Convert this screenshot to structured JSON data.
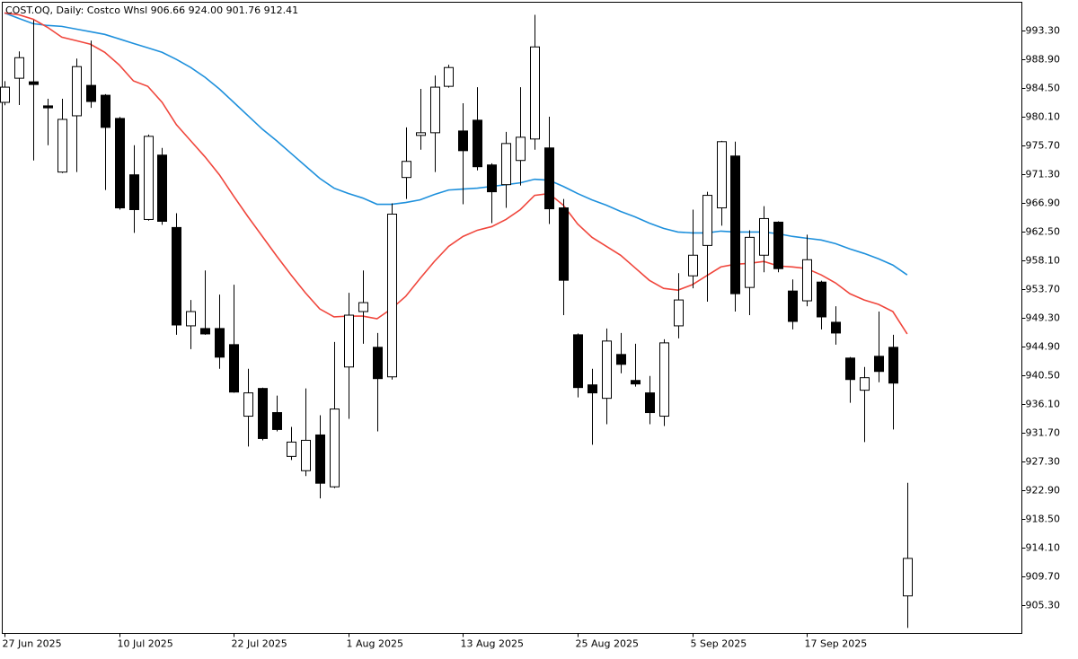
{
  "chart_data": {
    "type": "candlestick",
    "title": "COST.OQ, Daily:  Costco Whsl  906.66 924.00 901.76 912.41",
    "categories": [
      "27 Jun 2025",
      null,
      null,
      null,
      null,
      null,
      null,
      null,
      "10 Jul 2025",
      null,
      null,
      null,
      null,
      null,
      null,
      null,
      "22 Jul 2025",
      null,
      null,
      null,
      null,
      null,
      null,
      null,
      "1 Aug 2025",
      null,
      null,
      null,
      null,
      null,
      null,
      null,
      "13 Aug 2025",
      null,
      null,
      null,
      null,
      null,
      null,
      null,
      "25 Aug 2025",
      null,
      null,
      null,
      null,
      null,
      null,
      null,
      "5 Sep 2025",
      null,
      null,
      null,
      null,
      null,
      null,
      null,
      "17 Sep 2025",
      null,
      null,
      null,
      null,
      null,
      null,
      null
    ],
    "open": [
      982.34,
      986.04,
      985.49,
      981.8,
      971.65,
      980.28,
      984.94,
      983.43,
      979.87,
      971.23,
      964.38,
      974.25,
      963.15,
      948.07,
      947.66,
      947.66,
      945.19,
      934.22,
      938.47,
      934.77,
      928.05,
      925.86,
      931.34,
      923.39,
      941.76,
      950.26,
      944.78,
      940.25,
      970.82,
      977.27,
      977.68,
      984.8,
      977.95,
      979.6,
      972.74,
      969.72,
      973.43,
      976.72,
      975.35,
      966.16,
      946.7,
      939.02,
      936.96,
      943.68,
      939.7,
      937.79,
      934.22,
      948.07,
      955.74,
      960.4,
      966.16,
      974.11,
      953.96,
      958.9,
      963.97,
      953.41,
      951.91,
      954.78,
      948.62,
      943.13,
      938.2,
      943.4,
      944.78,
      906.66
    ],
    "high": [
      985.6,
      990.15,
      994.95,
      982.89,
      982.89,
      989.05,
      991.8,
      983.6,
      980.1,
      975.76,
      977.4,
      975.35,
      965.34,
      952.04,
      956.56,
      952.86,
      954.37,
      941.49,
      938.6,
      937.38,
      932.58,
      938.47,
      934.36,
      945.6,
      953.14,
      956.56,
      946.97,
      966.85,
      978.5,
      984.4,
      986.45,
      988.1,
      982.2,
      984.67,
      973.0,
      977.81,
      984.67,
      995.77,
      980.14,
      967.53,
      946.9,
      941.49,
      947.66,
      946.97,
      945.33,
      940.39,
      946.01,
      956.15,
      965.89,
      968.63,
      976.44,
      976.31,
      962.73,
      966.43,
      964.1,
      955.19,
      962.05,
      955.0,
      951.08,
      943.3,
      941.76,
      950.26,
      946.7,
      924.0
    ],
    "low": [
      981.9,
      981.93,
      973.43,
      975.76,
      971.5,
      971.65,
      981.5,
      968.9,
      965.89,
      962.32,
      964.2,
      963.56,
      946.7,
      944.5,
      946.7,
      941.49,
      937.8,
      929.56,
      930.5,
      931.89,
      927.5,
      925.04,
      921.61,
      923.2,
      933.81,
      945.33,
      931.89,
      939.84,
      967.53,
      975.07,
      971.65,
      984.6,
      966.71,
      971.92,
      963.83,
      966.16,
      969.59,
      975.07,
      963.69,
      949.71,
      937.1,
      929.84,
      932.99,
      940.8,
      938.75,
      932.99,
      932.71,
      946.15,
      953.82,
      951.77,
      963.42,
      950.26,
      949.71,
      956.29,
      956.29,
      947.52,
      951.08,
      947.52,
      945.19,
      936.28,
      930.25,
      939.43,
      932.17,
      901.76
    ],
    "close": [
      984.67,
      989.19,
      985.08,
      981.5,
      979.73,
      987.82,
      982.47,
      978.5,
      966.16,
      965.89,
      977.13,
      964.1,
      948.2,
      950.26,
      946.83,
      943.27,
      937.92,
      937.79,
      930.79,
      932.17,
      930.25,
      930.52,
      923.94,
      935.32,
      949.71,
      951.63,
      939.98,
      965.2,
      973.29,
      977.68,
      984.67,
      987.68,
      974.93,
      972.47,
      968.63,
      976.03,
      976.99,
      990.84,
      966.02,
      955.06,
      938.61,
      937.79,
      945.74,
      942.17,
      939.16,
      934.77,
      945.46,
      952.04,
      958.9,
      968.08,
      976.31,
      953.0,
      961.64,
      964.52,
      956.84,
      948.75,
      958.21,
      949.44,
      946.97,
      939.84,
      940.12,
      941.08,
      939.29,
      912.41
    ],
    "up_color": "#ffffff",
    "down_color": "#000000",
    "overlays": [
      {
        "color": "#1e90dc",
        "values": [
          996.05,
          995.22,
          994.4,
          994.13,
          993.99,
          993.58,
          993.17,
          992.76,
          992.07,
          991.38,
          990.7,
          990.01,
          988.92,
          987.68,
          986.18,
          984.39,
          982.34,
          980.28,
          978.22,
          976.44,
          974.52,
          972.6,
          970.69,
          969.18,
          968.36,
          967.67,
          966.71,
          966.71,
          966.98,
          967.39,
          968.22,
          968.9,
          969.04,
          969.18,
          969.45,
          969.72,
          970.0,
          970.55,
          970.41,
          969.45,
          968.36,
          967.39,
          966.57,
          965.61,
          964.79,
          963.83,
          963.01,
          962.46,
          962.32,
          962.32,
          962.6,
          962.46,
          962.46,
          962.46,
          962.19,
          961.78,
          961.5,
          961.23,
          960.68,
          959.86,
          959.17,
          958.35,
          957.39,
          955.88
        ]
      },
      {
        "color": "#f0463c",
        "values": [
          996.05,
          995.77,
          995.09,
          993.85,
          992.34,
          991.8,
          991.25,
          990.01,
          988.09,
          985.63,
          984.8,
          982.34,
          978.91,
          976.44,
          973.97,
          971.23,
          967.94,
          964.79,
          961.78,
          958.76,
          955.88,
          953.14,
          950.67,
          949.44,
          949.57,
          949.57,
          949.16,
          950.67,
          952.59,
          955.33,
          957.94,
          960.27,
          961.78,
          962.73,
          963.28,
          964.38,
          965.89,
          968.08,
          968.36,
          966.57,
          963.69,
          961.64,
          960.27,
          958.9,
          956.98,
          955.06,
          953.82,
          953.55,
          954.37,
          955.74,
          957.11,
          957.52,
          957.66,
          957.94,
          957.25,
          957.11,
          956.84,
          955.88,
          954.65,
          953.0,
          952.04,
          951.36,
          950.26,
          946.83
        ]
      }
    ],
    "ylim": [
      900.91,
      997.69
    ],
    "yticks": [
      {
        "value": 993.3,
        "label": "993.30"
      },
      {
        "value": 988.9,
        "label": "988.90"
      },
      {
        "value": 984.5,
        "label": "984.50"
      },
      {
        "value": 980.1,
        "label": "980.10"
      },
      {
        "value": 975.7,
        "label": "975.70"
      },
      {
        "value": 971.3,
        "label": "971.30"
      },
      {
        "value": 966.9,
        "label": "966.90"
      },
      {
        "value": 962.5,
        "label": "962.50"
      },
      {
        "value": 958.1,
        "label": "958.10"
      },
      {
        "value": 953.7,
        "label": "953.70"
      },
      {
        "value": 949.3,
        "label": "949.30"
      },
      {
        "value": 944.9,
        "label": "944.90"
      },
      {
        "value": 940.5,
        "label": "940.50"
      },
      {
        "value": 936.1,
        "label": "936.10"
      },
      {
        "value": 931.7,
        "label": "931.70"
      },
      {
        "value": 927.3,
        "label": "927.30"
      },
      {
        "value": 922.9,
        "label": "922.90"
      },
      {
        "value": 918.5,
        "label": "918.50"
      },
      {
        "value": 914.1,
        "label": "914.10"
      },
      {
        "value": 909.7,
        "label": "909.70"
      },
      {
        "value": 905.3,
        "label": "905.30"
      }
    ]
  }
}
